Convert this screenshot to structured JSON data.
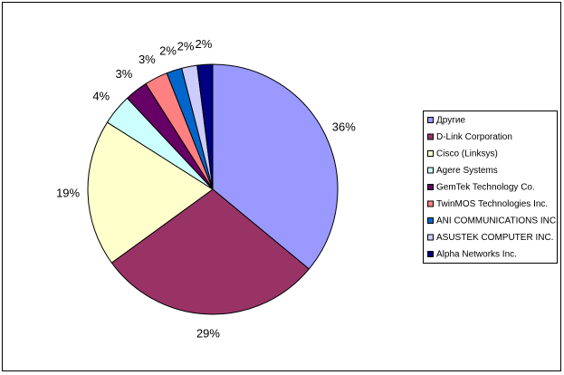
{
  "chart_data": {
    "type": "pie",
    "categories": [
      "Другие",
      "D-Link Corporation",
      "Cisco (Linksys)",
      "Agere Systems",
      "GemTek Technology Co.",
      "TwinMOS Technologies Inc.",
      "ANI COMMUNICATIONS INC.",
      "ASUSTEK COMPUTER INC.",
      "Alpha Networks Inc."
    ],
    "values": [
      36,
      29,
      19,
      4,
      3,
      3,
      2,
      2,
      2
    ],
    "value_labels": [
      "36%",
      "29%",
      "19%",
      "4%",
      "3%",
      "3%",
      "2%",
      "2%",
      "2%"
    ],
    "colors": [
      "#9999ff",
      "#993366",
      "#ffffcc",
      "#ccffff",
      "#660066",
      "#ff8080",
      "#0066cc",
      "#ccccff",
      "#000080"
    ],
    "legend": "right"
  }
}
